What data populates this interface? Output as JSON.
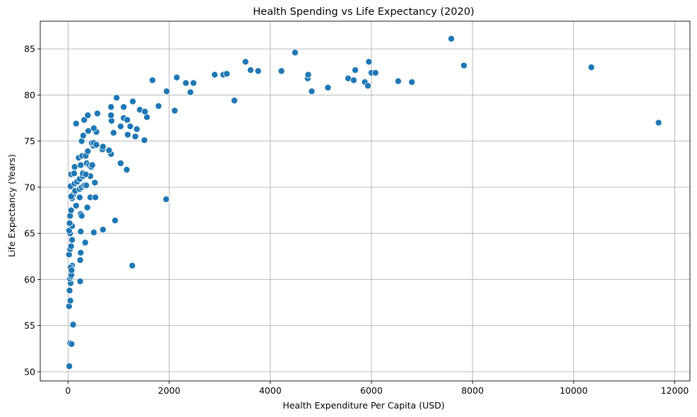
{
  "chart_data": {
    "type": "scatter",
    "title": "Health Spending vs Life Expectancy (2020)",
    "xlabel": "Health Expenditure Per Capita (USD)",
    "ylabel": "Life Expectancy (Years)",
    "xlim": [
      -550,
      12300
    ],
    "ylim": [
      49.0,
      88.0
    ],
    "xticks": [
      0,
      2000,
      4000,
      6000,
      8000,
      10000,
      12000
    ],
    "yticks": [
      50,
      55,
      60,
      65,
      70,
      75,
      80,
      85
    ],
    "grid": true,
    "marker_color": "#1f77b4",
    "points": [
      [
        25,
        50.6
      ],
      [
        40,
        53.1
      ],
      [
        70,
        53.0
      ],
      [
        100,
        55.1
      ],
      [
        20,
        57.1
      ],
      [
        45,
        57.7
      ],
      [
        30,
        58.8
      ],
      [
        50,
        59.6
      ],
      [
        240,
        59.8
      ],
      [
        35,
        60.1
      ],
      [
        55,
        60.3
      ],
      [
        65,
        60.5
      ],
      [
        80,
        61.5
      ],
      [
        50,
        61.3
      ],
      [
        70,
        61.0
      ],
      [
        1270,
        61.5
      ],
      [
        240,
        62.1
      ],
      [
        20,
        62.7
      ],
      [
        40,
        63.3
      ],
      [
        60,
        63.6
      ],
      [
        250,
        62.9
      ],
      [
        340,
        64.0
      ],
      [
        80,
        64.3
      ],
      [
        40,
        65.0
      ],
      [
        20,
        65.3
      ],
      [
        80,
        65.8
      ],
      [
        250,
        65.2
      ],
      [
        510,
        65.1
      ],
      [
        690,
        65.4
      ],
      [
        930,
        66.4
      ],
      [
        30,
        66.1
      ],
      [
        40,
        66.9
      ],
      [
        60,
        67.5
      ],
      [
        250,
        67.1
      ],
      [
        270,
        66.9
      ],
      [
        380,
        67.8
      ],
      [
        160,
        68.0
      ],
      [
        80,
        68.8
      ],
      [
        230,
        68.9
      ],
      [
        440,
        68.9
      ],
      [
        540,
        68.9
      ],
      [
        1940,
        68.7
      ],
      [
        100,
        69.2
      ],
      [
        60,
        69.0
      ],
      [
        140,
        69.6
      ],
      [
        230,
        69.8
      ],
      [
        270,
        70.0
      ],
      [
        320,
        70.2
      ],
      [
        50,
        70.1
      ],
      [
        130,
        70.4
      ],
      [
        180,
        70.6
      ],
      [
        230,
        70.9
      ],
      [
        360,
        70.2
      ],
      [
        530,
        70.5
      ],
      [
        290,
        71.2
      ],
      [
        60,
        71.4
      ],
      [
        120,
        71.5
      ],
      [
        290,
        71.5
      ],
      [
        440,
        71.2
      ],
      [
        350,
        71.4
      ],
      [
        1160,
        71.9
      ],
      [
        130,
        72.2
      ],
      [
        250,
        72.4
      ],
      [
        370,
        72.6
      ],
      [
        420,
        72.4
      ],
      [
        460,
        72.2
      ],
      [
        480,
        72.4
      ],
      [
        1040,
        72.6
      ],
      [
        210,
        73.2
      ],
      [
        280,
        73.4
      ],
      [
        350,
        73.4
      ],
      [
        390,
        73.9
      ],
      [
        850,
        73.6
      ],
      [
        810,
        74.0
      ],
      [
        680,
        74.1
      ],
      [
        690,
        74.4
      ],
      [
        500,
        74.5
      ],
      [
        270,
        75.0
      ],
      [
        300,
        75.6
      ],
      [
        470,
        74.8
      ],
      [
        510,
        74.8
      ],
      [
        560,
        74.6
      ],
      [
        560,
        76.0
      ],
      [
        1180,
        75.7
      ],
      [
        900,
        75.9
      ],
      [
        1330,
        75.5
      ],
      [
        1510,
        75.1
      ],
      [
        400,
        76.1
      ],
      [
        510,
        76.4
      ],
      [
        1040,
        76.6
      ],
      [
        1230,
        76.6
      ],
      [
        1360,
        76.3
      ],
      [
        160,
        76.9
      ],
      [
        320,
        77.3
      ],
      [
        390,
        77.8
      ],
      [
        580,
        78.0
      ],
      [
        860,
        77.2
      ],
      [
        850,
        77.8
      ],
      [
        1100,
        77.5
      ],
      [
        1170,
        77.3
      ],
      [
        1560,
        77.6
      ],
      [
        850,
        78.7
      ],
      [
        1100,
        78.7
      ],
      [
        1420,
        78.4
      ],
      [
        1520,
        78.2
      ],
      [
        1790,
        78.8
      ],
      [
        2110,
        78.3
      ],
      [
        960,
        79.7
      ],
      [
        1280,
        79.3
      ],
      [
        1950,
        80.4
      ],
      [
        2420,
        80.3
      ],
      [
        2150,
        81.9
      ],
      [
        1670,
        81.6
      ],
      [
        2330,
        81.3
      ],
      [
        2480,
        81.3
      ],
      [
        3290,
        79.4
      ],
      [
        2900,
        82.2
      ],
      [
        3070,
        82.2
      ],
      [
        3140,
        82.3
      ],
      [
        3510,
        83.6
      ],
      [
        3610,
        82.7
      ],
      [
        3760,
        82.6
      ],
      [
        4220,
        82.6
      ],
      [
        4490,
        84.6
      ],
      [
        4740,
        81.8
      ],
      [
        4750,
        82.2
      ],
      [
        4820,
        80.4
      ],
      [
        5140,
        80.8
      ],
      [
        5540,
        81.8
      ],
      [
        5650,
        81.6
      ],
      [
        5680,
        82.7
      ],
      [
        5870,
        81.4
      ],
      [
        5930,
        81.0
      ],
      [
        5950,
        83.6
      ],
      [
        6000,
        82.4
      ],
      [
        6080,
        82.4
      ],
      [
        6530,
        81.5
      ],
      [
        6800,
        81.4
      ],
      [
        7580,
        86.1
      ],
      [
        7830,
        83.2
      ],
      [
        10350,
        83.0
      ],
      [
        11680,
        77.0
      ]
    ]
  }
}
